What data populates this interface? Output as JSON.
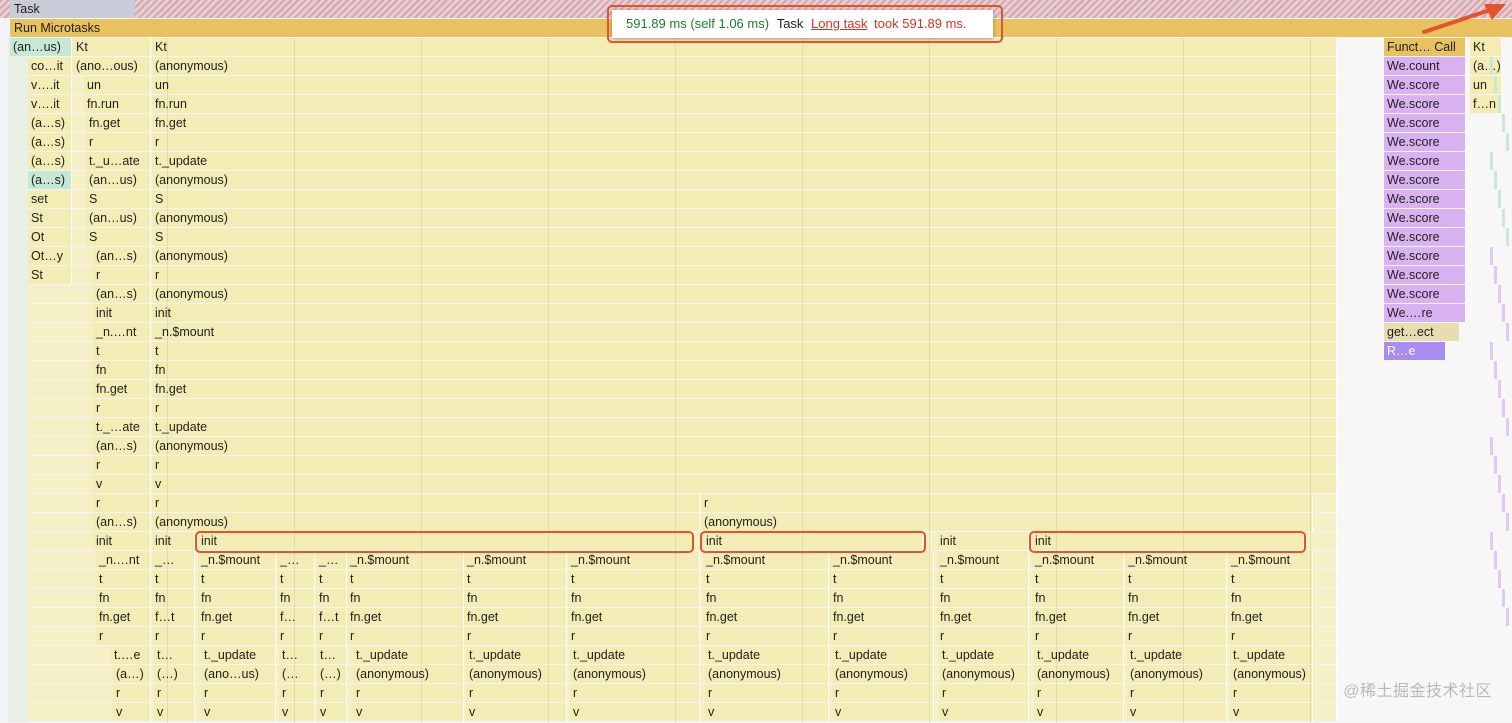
{
  "tooltip": {
    "duration": "591.89 ms (self 1.06 ms)",
    "name": "Task",
    "link": "Long task",
    "warning": "took 591.89 ms."
  },
  "watermark": "@稀土掘金技术社区",
  "colors": {
    "task": "#d7a2ab",
    "microtasks": "#e8c25e",
    "flame": "#f3ecb4",
    "teal": "#c7e8d6",
    "purple": "#d9b3f1",
    "violet": "#a88cf0",
    "highlight": "#e2542b"
  },
  "rows": [
    {
      "bg": "#f3ecb4",
      "blocks": [
        {
          "text": "(an…us)",
          "c": "teal"
        },
        {
          "text": "Kt"
        },
        {
          "text": "Kt"
        },
        {
          "text": "Funct… Call",
          "c": "mustard"
        },
        {
          "text": "Kt",
          "c": "yellow2"
        }
      ]
    },
    {
      "blocks": [
        {
          "text": "co…it"
        },
        {
          "text": "(ano…ous)"
        },
        {
          "text": "(anonymous)"
        },
        {
          "text": "We.count",
          "c": "purple"
        },
        {
          "text": "(a…)"
        }
      ]
    },
    {
      "blocks": [
        {
          "text": "v….it"
        },
        {
          "text": "un"
        },
        {
          "text": "un"
        },
        {
          "text": "We.score",
          "c": "purple"
        },
        {
          "text": "un"
        }
      ]
    },
    {
      "blocks": [
        {
          "text": "v….it"
        },
        {
          "text": "fn.run"
        },
        {
          "text": "fn.run"
        },
        {
          "text": "We.score",
          "c": "purple"
        },
        {
          "text": "f…n"
        }
      ]
    },
    {
      "blocks": [
        {
          "text": "(a…s)"
        },
        {
          "text": "fn.get"
        },
        {
          "text": "fn.get"
        },
        {
          "text": "We.score",
          "c": "purple"
        }
      ]
    },
    {
      "blocks": [
        {
          "text": "(a…s)"
        },
        {
          "text": "r"
        },
        {
          "text": "r"
        },
        {
          "text": "We.score",
          "c": "purple"
        }
      ]
    },
    {
      "blocks": [
        {
          "text": "(a…s)"
        },
        {
          "text": "t._u…ate"
        },
        {
          "text": "t._update"
        },
        {
          "text": "We.score",
          "c": "purple"
        }
      ]
    },
    {
      "blocks": [
        {
          "text": "(a…s)",
          "c": "teal"
        },
        {
          "text": "(an…us)"
        },
        {
          "text": "(anonymous)"
        },
        {
          "text": "We.score",
          "c": "purple"
        }
      ]
    },
    {
      "blocks": [
        {
          "text": "set"
        },
        {
          "text": "S"
        },
        {
          "text": "S"
        },
        {
          "text": "We.score",
          "c": "purple"
        }
      ]
    },
    {
      "blocks": [
        {
          "text": "St"
        },
        {
          "text": "(an…us)"
        },
        {
          "text": "(anonymous)"
        },
        {
          "text": "We.score",
          "c": "purple"
        }
      ]
    },
    {
      "blocks": [
        {
          "text": "Ot"
        },
        {
          "text": "S"
        },
        {
          "text": "S"
        },
        {
          "text": "We.score",
          "c": "purple"
        }
      ]
    },
    {
      "blocks": [
        {
          "text": "Ot…y"
        },
        {
          "text": "(an…s)"
        },
        {
          "text": "(anonymous)"
        },
        {
          "text": "We.score",
          "c": "purple"
        }
      ]
    },
    {
      "blocks": [
        {
          "text": "St"
        },
        {
          "text": "r"
        },
        {
          "text": "r"
        },
        {
          "text": "We.score",
          "c": "purple"
        }
      ]
    },
    {
      "blocks": [
        {
          "text": "(an…s)"
        },
        {
          "text": "(anonymous)"
        },
        {
          "text": "We.score",
          "c": "purple"
        }
      ]
    },
    {
      "blocks": [
        {
          "text": "init"
        },
        {
          "text": "init"
        },
        {
          "text": "We.…re",
          "c": "purple"
        }
      ]
    },
    {
      "blocks": [
        {
          "text": "_n.…nt"
        },
        {
          "text": "_n.$mount"
        },
        {
          "text": "get…ect",
          "c": "olive"
        }
      ]
    },
    {
      "blocks": [
        {
          "text": "t"
        },
        {
          "text": "t"
        },
        {
          "text": "R…e",
          "c": "violet"
        }
      ]
    },
    {
      "blocks": [
        {
          "text": "fn"
        },
        {
          "text": "fn"
        }
      ]
    },
    {
      "blocks": [
        {
          "text": "fn.get"
        },
        {
          "text": "fn.get"
        }
      ]
    },
    {
      "blocks": [
        {
          "text": "r"
        },
        {
          "text": "r"
        }
      ]
    },
    {
      "blocks": [
        {
          "text": "t._…ate"
        },
        {
          "text": "t._update"
        }
      ]
    },
    {
      "blocks": [
        {
          "text": "(an…s)"
        },
        {
          "text": "(anonymous)"
        }
      ]
    },
    {
      "blocks": [
        {
          "text": "r"
        },
        {
          "text": "r"
        }
      ]
    },
    {
      "blocks": [
        {
          "text": "v"
        },
        {
          "text": "v"
        }
      ]
    },
    {
      "blocks": [
        {
          "text": "r"
        },
        {
          "text": "r"
        },
        {
          "text": "r"
        }
      ]
    },
    {
      "blocks": [
        {
          "text": "(an…s)"
        },
        {
          "text": "(anonymous)"
        },
        {
          "text": "(anonymous)"
        }
      ]
    },
    {
      "blocks": [
        {
          "text": "init"
        },
        {
          "text": "init"
        },
        {
          "text": "init"
        },
        {
          "text": "init"
        },
        {
          "text": "init"
        },
        {
          "text": "init"
        }
      ]
    },
    {
      "blocks": [
        {
          "text": "_n.…nt"
        },
        {
          "text": "_…"
        },
        {
          "text": "_n.$mount"
        },
        {
          "text": "_…"
        },
        {
          "text": "_…"
        },
        {
          "text": "_n.$mount"
        },
        {
          "text": "_n.$mount"
        },
        {
          "text": "_n.$mount"
        },
        {
          "text": "_n.$mount"
        },
        {
          "text": "_n.$mount"
        },
        {
          "text": "_n.$mount"
        },
        {
          "text": "_n.$mount"
        },
        {
          "text": "_n.$mount"
        },
        {
          "text": "_n.$mount"
        }
      ]
    },
    {
      "blocks": [
        {
          "text": "t"
        },
        {
          "text": "t"
        },
        {
          "text": "t"
        },
        {
          "text": "t"
        },
        {
          "text": "t"
        },
        {
          "text": "t"
        },
        {
          "text": "t"
        },
        {
          "text": "t"
        },
        {
          "text": "t"
        },
        {
          "text": "t"
        },
        {
          "text": "t"
        },
        {
          "text": "t"
        },
        {
          "text": "t"
        },
        {
          "text": "t"
        }
      ]
    },
    {
      "blocks": [
        {
          "text": "fn"
        },
        {
          "text": "fn"
        },
        {
          "text": "fn"
        },
        {
          "text": "fn"
        },
        {
          "text": "fn"
        },
        {
          "text": "fn"
        },
        {
          "text": "fn"
        },
        {
          "text": "fn"
        },
        {
          "text": "fn"
        },
        {
          "text": "fn"
        },
        {
          "text": "fn"
        },
        {
          "text": "fn"
        },
        {
          "text": "fn"
        },
        {
          "text": "fn"
        }
      ]
    },
    {
      "blocks": [
        {
          "text": "fn.get"
        },
        {
          "text": "f…t"
        },
        {
          "text": "fn.get"
        },
        {
          "text": "f…"
        },
        {
          "text": "f…t"
        },
        {
          "text": "fn.get"
        },
        {
          "text": "fn.get"
        },
        {
          "text": "fn.get"
        },
        {
          "text": "fn.get"
        },
        {
          "text": "fn.get"
        },
        {
          "text": "fn.get"
        },
        {
          "text": "fn.get"
        },
        {
          "text": "fn.get"
        },
        {
          "text": "fn.get"
        }
      ]
    },
    {
      "blocks": [
        {
          "text": "r"
        },
        {
          "text": "r"
        },
        {
          "text": "r"
        },
        {
          "text": "r"
        },
        {
          "text": "r"
        },
        {
          "text": "r"
        },
        {
          "text": "r"
        },
        {
          "text": "r"
        },
        {
          "text": "r"
        },
        {
          "text": "r"
        },
        {
          "text": "r"
        },
        {
          "text": "r"
        },
        {
          "text": "r"
        },
        {
          "text": "r"
        }
      ]
    },
    {
      "blocks": [
        {
          "text": "t.…e"
        },
        {
          "text": "t…"
        },
        {
          "text": "t._update"
        },
        {
          "text": "t…"
        },
        {
          "text": "t…"
        },
        {
          "text": "t._update"
        },
        {
          "text": "t._update"
        },
        {
          "text": "t._update"
        },
        {
          "text": "t._update"
        },
        {
          "text": "t._update"
        },
        {
          "text": "t._update"
        },
        {
          "text": "t._update"
        },
        {
          "text": "t._update"
        },
        {
          "text": "t._update"
        }
      ]
    },
    {
      "blocks": [
        {
          "text": "(a…)"
        },
        {
          "text": "(…)"
        },
        {
          "text": "(ano…us)"
        },
        {
          "text": "(…"
        },
        {
          "text": "(…)"
        },
        {
          "text": "(anonymous)"
        },
        {
          "text": "(anonymous)"
        },
        {
          "text": "(anonymous)"
        },
        {
          "text": "(anonymous)"
        },
        {
          "text": "(anonymous)"
        },
        {
          "text": "(anonymous)"
        },
        {
          "text": "(anonymous)"
        },
        {
          "text": "(anonymous)"
        },
        {
          "text": "(anonymous)"
        }
      ]
    },
    {
      "blocks": [
        {
          "text": "r"
        },
        {
          "text": "r"
        },
        {
          "text": "r"
        },
        {
          "text": "r"
        },
        {
          "text": "r"
        },
        {
          "text": "r"
        },
        {
          "text": "r"
        },
        {
          "text": "r"
        },
        {
          "text": "r"
        },
        {
          "text": "r"
        },
        {
          "text": "r"
        },
        {
          "text": "r"
        },
        {
          "text": "r"
        },
        {
          "text": "r"
        }
      ]
    },
    {
      "blocks": [
        {
          "text": "v"
        },
        {
          "text": "v"
        },
        {
          "text": "v"
        },
        {
          "text": "v"
        },
        {
          "text": "v"
        },
        {
          "text": "v"
        },
        {
          "text": "v"
        },
        {
          "text": "v"
        },
        {
          "text": "v"
        },
        {
          "text": "v"
        },
        {
          "text": "v"
        },
        {
          "text": "v"
        },
        {
          "text": "v"
        },
        {
          "text": "v"
        }
      ]
    }
  ],
  "top_rows": {
    "task_label": "Task",
    "microtasks_label": "Run Microtasks"
  }
}
